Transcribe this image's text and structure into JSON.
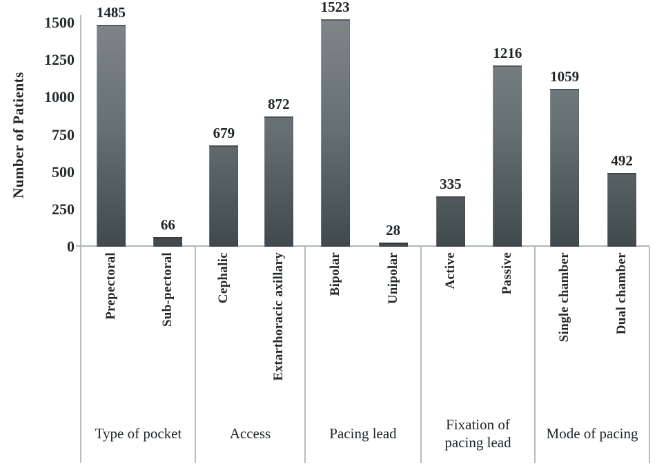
{
  "chart_data": {
    "type": "bar",
    "title": "",
    "xlabel": "",
    "ylabel": "Number of Patients",
    "ylim": [
      0,
      1500
    ],
    "yticks": [
      0,
      250,
      500,
      750,
      1000,
      1250,
      1500
    ],
    "grid": false,
    "legend": "none",
    "bar_value_labels_shown": true,
    "category_label_orientation": "vertical-bottom-to-top",
    "groups": [
      {
        "label": "Type of pocket",
        "categories": [
          "Prepectoral",
          "Sub-pectoral"
        ],
        "values": [
          1485,
          66
        ]
      },
      {
        "label": "Access",
        "categories": [
          "Cephalic",
          "Extarthoracic axillary"
        ],
        "values": [
          679,
          872
        ]
      },
      {
        "label": "Pacing lead",
        "categories": [
          "Bipolar",
          "Unipolar"
        ],
        "values": [
          1523,
          28
        ]
      },
      {
        "label": "Fixation of pacing lead",
        "categories": [
          "Active",
          "Passive"
        ],
        "values": [
          335,
          1216
        ]
      },
      {
        "label": "Mode of pacing",
        "categories": [
          "Single chamber",
          "Dual chamber"
        ],
        "values": [
          1059,
          492
        ]
      }
    ],
    "colors": {
      "bar_gradient_top": "#7e8689",
      "bar_gradient_mid": "#656f72",
      "bar_gradient_bottom": "#404a4d",
      "axis_line": "#b4bebc",
      "text": "#22282b",
      "background": "#ffffff"
    }
  }
}
